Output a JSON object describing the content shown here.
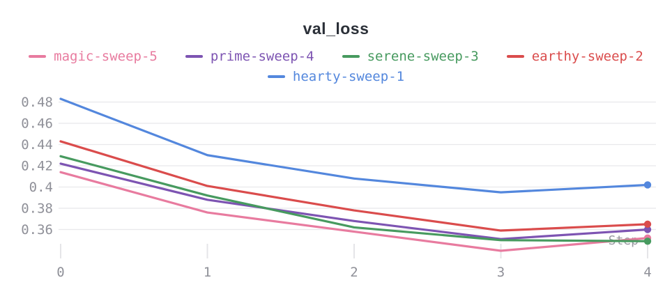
{
  "title": "val_loss",
  "legend": [
    {
      "label": "magic-sweep-5",
      "color": "#E87B9F"
    },
    {
      "label": "prime-sweep-4",
      "color": "#7D54B2"
    },
    {
      "label": "serene-sweep-3",
      "color": "#479A5F"
    },
    {
      "label": "earthy-sweep-2",
      "color": "#DA4C4C"
    },
    {
      "label": "hearty-sweep-1",
      "color": "#5387DD"
    }
  ],
  "chart_data": {
    "type": "line",
    "title": "val_loss",
    "xlabel": "Step",
    "x": [
      0,
      1,
      2,
      3,
      4
    ],
    "x_tick_labels": [
      "0",
      "1",
      "2",
      "3",
      "4"
    ],
    "y_ticks": [
      {
        "v": 0.48,
        "label": "0.48"
      },
      {
        "v": 0.46,
        "label": "0.46"
      },
      {
        "v": 0.44,
        "label": "0.44"
      },
      {
        "v": 0.42,
        "label": "0.42"
      },
      {
        "v": 0.4,
        "label": "0.4"
      },
      {
        "v": 0.38,
        "label": "0.38"
      },
      {
        "v": 0.36,
        "label": "0.36"
      }
    ],
    "ylim": [
      0.333,
      0.485
    ],
    "grid": "horizontal-only",
    "legend_position": "top",
    "end_markers": true,
    "series": [
      {
        "name": "magic-sweep-5",
        "color": "#E87B9F",
        "values": [
          0.414,
          0.376,
          0.358,
          0.34,
          0.352
        ]
      },
      {
        "name": "prime-sweep-4",
        "color": "#7D54B2",
        "values": [
          0.422,
          0.388,
          0.368,
          0.351,
          0.36
        ]
      },
      {
        "name": "serene-sweep-3",
        "color": "#479A5F",
        "values": [
          0.429,
          0.392,
          0.362,
          0.35,
          0.349
        ]
      },
      {
        "name": "earthy-sweep-2",
        "color": "#DA4C4C",
        "values": [
          0.443,
          0.401,
          0.378,
          0.359,
          0.365
        ]
      },
      {
        "name": "hearty-sweep-1",
        "color": "#5387DD",
        "values": [
          0.483,
          0.43,
          0.408,
          0.395,
          0.402
        ]
      }
    ]
  },
  "style": {
    "grid_color": "#e8e8eb",
    "tick_color": "#e5e5e8",
    "label_color": "#8f9098",
    "title_color": "#2b3038"
  }
}
